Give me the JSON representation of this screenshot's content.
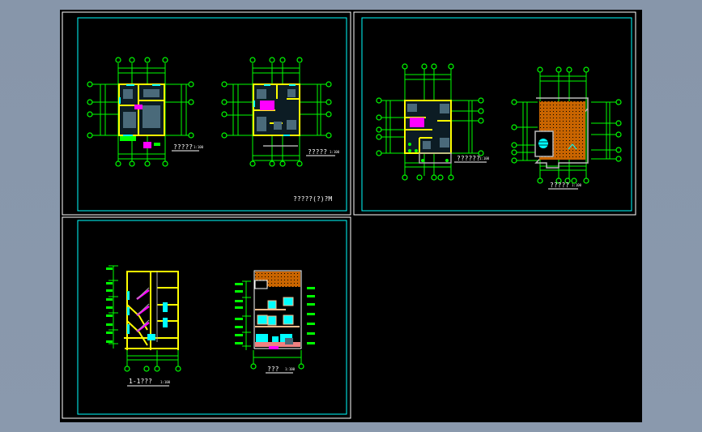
{
  "colors": {
    "background": "#8796aa",
    "canvas": "#000000",
    "frame_outer": "#ffffff",
    "frame_inner": "#00ffff",
    "wall": "#ffff00",
    "dimension": "#00ff00",
    "stair": "#ff00ff",
    "roof": "#c86400"
  },
  "sheets": [
    {
      "name": "sheet-1",
      "drawings": [
        {
          "title": "?????",
          "scale": "1:100"
        },
        {
          "title": "?????",
          "scale": "1:100"
        }
      ],
      "sheet_title": "?????(?)?M"
    },
    {
      "name": "sheet-2",
      "drawings": [
        {
          "title": "??????",
          "scale": "1:100"
        },
        {
          "title": "?????",
          "scale": "1:100"
        }
      ]
    },
    {
      "name": "sheet-3",
      "drawings": [
        {
          "title": "1-1???",
          "scale": "1:100"
        },
        {
          "title": "???",
          "scale": "1:100"
        }
      ]
    }
  ]
}
